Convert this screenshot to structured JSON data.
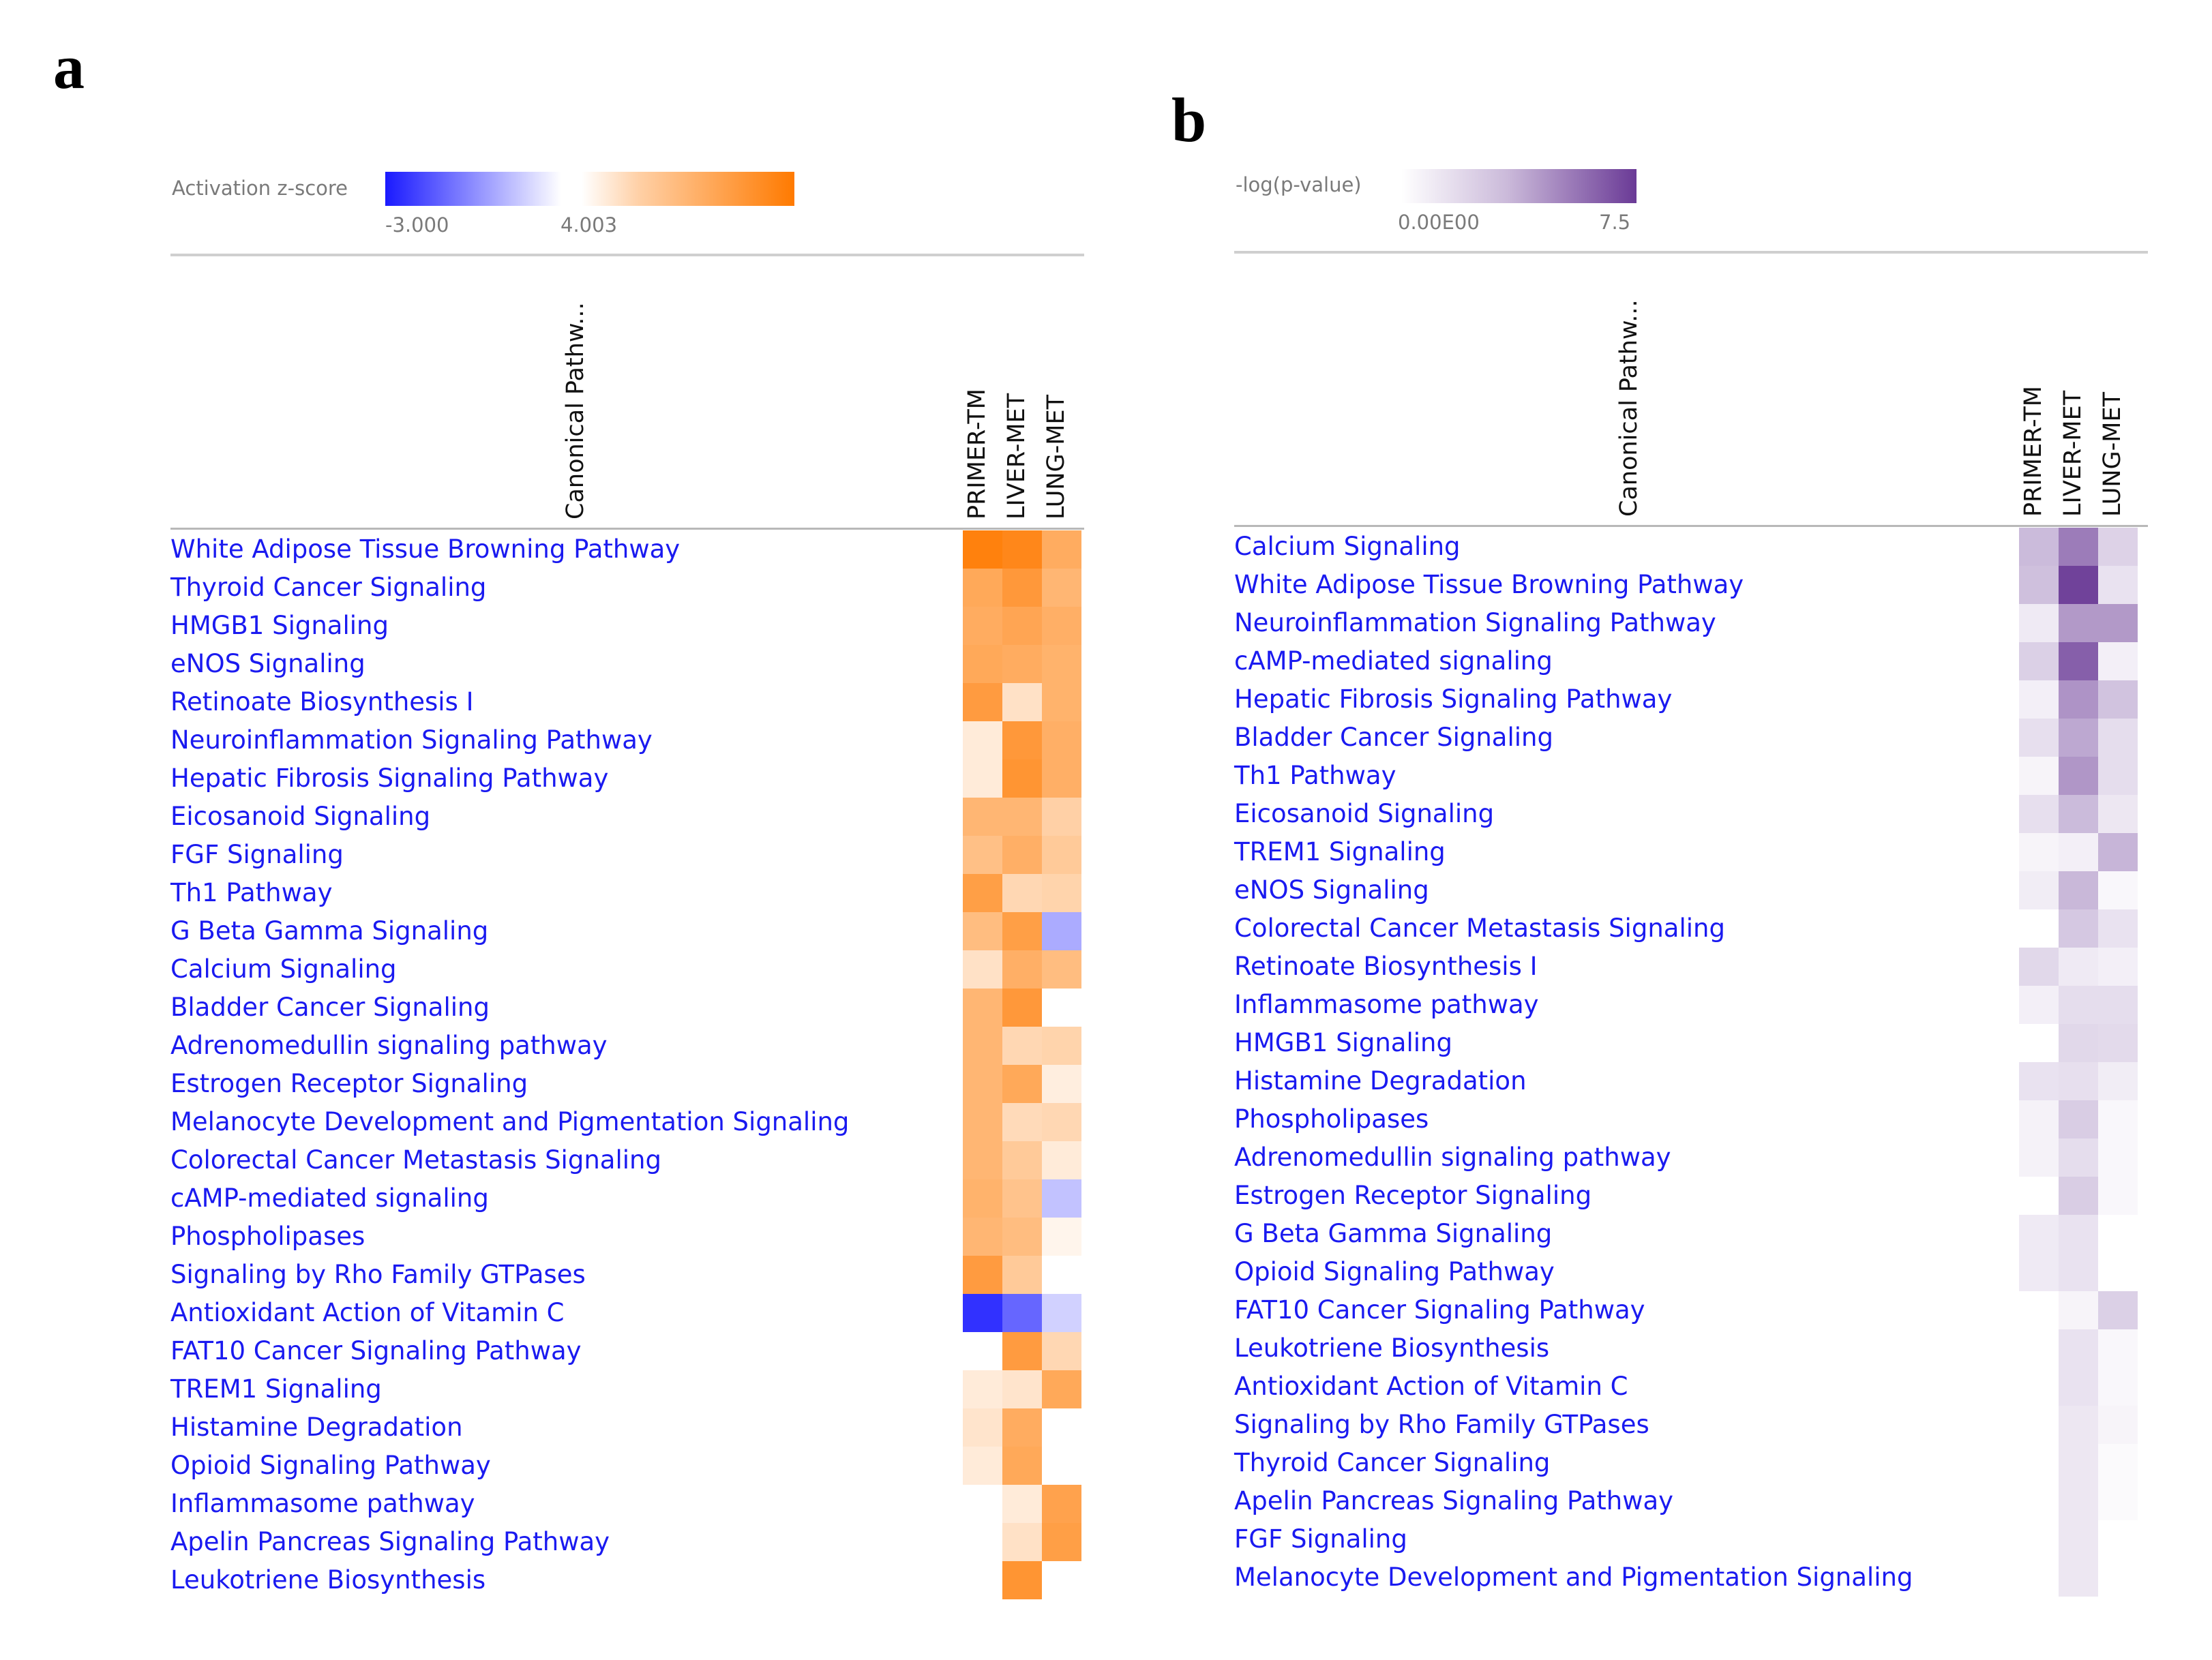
{
  "panel_a": {
    "letter": "a",
    "legend": {
      "title": "Activation z-score",
      "min_label": "-3.000",
      "max_label": "4.003",
      "min": -3.0,
      "max": 4.003,
      "low_color": "#1a1aff",
      "mid_color": "#ffffff",
      "high_color": "#ff7a00"
    },
    "pathway_header": "Canonical Pathw...",
    "columns": [
      "PRIMER-TM",
      "LIVER-MET",
      "LUNG-MET"
    ]
  },
  "panel_b": {
    "letter": "b",
    "legend": {
      "title": "-log(p-value)",
      "min_label": "0.00E00",
      "max_label": "7.5",
      "min": 0.0,
      "max": 7.5,
      "low_color": "#ffffff",
      "high_color": "#6a3a96"
    },
    "pathway_header": "Canonical Pathw...",
    "columns": [
      "PRIMER-TM",
      "LIVER-MET",
      "LUNG-MET"
    ]
  },
  "chart_data": [
    {
      "type": "heatmap",
      "title": "Activation z-score",
      "columns": [
        "PRIMER-TM",
        "LIVER-MET",
        "LUNG-MET"
      ],
      "range": [
        -3.0,
        4.003
      ],
      "rows": [
        {
          "label": "White Adipose Tissue Browning Pathway",
          "values": [
            3.8,
            3.6,
            2.5
          ]
        },
        {
          "label": "Thyroid Cancer Signaling",
          "values": [
            2.6,
            3.1,
            2.2
          ]
        },
        {
          "label": "HMGB1 Signaling",
          "values": [
            2.5,
            2.7,
            2.4
          ]
        },
        {
          "label": "eNOS Signaling",
          "values": [
            2.6,
            2.5,
            2.3
          ]
        },
        {
          "label": "Retinoate Biosynthesis I",
          "values": [
            3.0,
            0.9,
            2.3
          ]
        },
        {
          "label": "Neuroinflammation Signaling Pathway",
          "values": [
            0.6,
            3.1,
            2.4
          ]
        },
        {
          "label": "Hepatic Fibrosis Signaling Pathway",
          "values": [
            0.6,
            3.2,
            2.4
          ]
        },
        {
          "label": "Eicosanoid Signaling",
          "values": [
            2.2,
            2.2,
            1.4
          ]
        },
        {
          "label": "FGF Signaling",
          "values": [
            1.9,
            2.4,
            1.6
          ]
        },
        {
          "label": "Th1 Pathway",
          "values": [
            2.9,
            1.2,
            1.3
          ]
        },
        {
          "label": "G Beta Gamma Signaling",
          "values": [
            2.0,
            2.9,
            -1.1
          ]
        },
        {
          "label": "Calcium Signaling",
          "values": [
            0.9,
            2.4,
            2.0
          ]
        },
        {
          "label": "Bladder Cancer Signaling",
          "values": [
            2.2,
            3.1,
            null
          ]
        },
        {
          "label": "Adrenomedullin signaling pathway",
          "values": [
            2.2,
            1.2,
            1.3
          ]
        },
        {
          "label": "Estrogen Receptor Signaling",
          "values": [
            2.2,
            2.6,
            0.5
          ]
        },
        {
          "label": "Melanocyte Development and Pigmentation Signaling",
          "values": [
            2.2,
            1.1,
            1.2
          ]
        },
        {
          "label": "Colorectal Cancer Metastasis Signaling",
          "values": [
            2.2,
            1.6,
            0.6
          ]
        },
        {
          "label": "cAMP-mediated signaling",
          "values": [
            2.3,
            1.8,
            -0.8
          ]
        },
        {
          "label": "Phospholipases",
          "values": [
            2.2,
            2.0,
            0.3
          ]
        },
        {
          "label": "Signaling by Rho Family GTPases",
          "values": [
            3.0,
            1.6,
            null
          ]
        },
        {
          "label": "Antioxidant Action of Vitamin C",
          "values": [
            -2.7,
            -2.0,
            -0.6
          ]
        },
        {
          "label": "FAT10 Cancer Signaling Pathway",
          "values": [
            null,
            3.0,
            1.2
          ]
        },
        {
          "label": "TREM1 Signaling",
          "values": [
            0.6,
            0.8,
            2.6
          ]
        },
        {
          "label": "Histamine Degradation",
          "values": [
            0.8,
            2.5,
            null
          ]
        },
        {
          "label": "Opioid Signaling Pathway",
          "values": [
            0.6,
            2.6,
            null
          ]
        },
        {
          "label": "Inflammasome pathway",
          "values": [
            null,
            0.6,
            2.8
          ]
        },
        {
          "label": "Apelin Pancreas Signaling Pathway",
          "values": [
            null,
            0.9,
            2.9
          ]
        },
        {
          "label": "Leukotriene Biosynthesis",
          "values": [
            null,
            3.2,
            null
          ]
        }
      ]
    },
    {
      "type": "heatmap",
      "title": "-log(p-value)",
      "columns": [
        "PRIMER-TM",
        "LIVER-MET",
        "LUNG-MET"
      ],
      "range": [
        0.0,
        7.5
      ],
      "rows": [
        {
          "label": "Calcium Signaling",
          "values": [
            2.6,
            5.0,
            1.7
          ]
        },
        {
          "label": "White Adipose Tissue Browning Pathway",
          "values": [
            2.4,
            7.2,
            1.1
          ]
        },
        {
          "label": "Neuroinflammation Signaling Pathway",
          "values": [
            0.8,
            3.9,
            3.9
          ]
        },
        {
          "label": "cAMP-mediated signaling",
          "values": [
            1.8,
            6.1,
            0.6
          ]
        },
        {
          "label": "Hepatic Fibrosis Signaling Pathway",
          "values": [
            0.6,
            4.1,
            2.3
          ]
        },
        {
          "label": "Bladder Cancer Signaling",
          "values": [
            1.2,
            3.3,
            1.3
          ]
        },
        {
          "label": "Th1 Pathway",
          "values": [
            0.4,
            4.0,
            1.3
          ]
        },
        {
          "label": "Eicosanoid Signaling",
          "values": [
            1.2,
            2.6,
            0.9
          ]
        },
        {
          "label": "TREM1 Signaling",
          "values": [
            0.4,
            0.6,
            2.8
          ]
        },
        {
          "label": "eNOS Signaling",
          "values": [
            0.7,
            2.7,
            0.3
          ]
        },
        {
          "label": "Colorectal Cancer Metastasis Signaling",
          "values": [
            null,
            2.1,
            1.1
          ]
        },
        {
          "label": "Retinoate Biosynthesis I",
          "values": [
            1.5,
            0.8,
            0.6
          ]
        },
        {
          "label": "Inflammasome pathway",
          "values": [
            0.6,
            1.3,
            1.3
          ]
        },
        {
          "label": "HMGB1 Signaling",
          "values": [
            null,
            1.5,
            1.4
          ]
        },
        {
          "label": "Histamine Degradation",
          "values": [
            1.1,
            1.2,
            0.7
          ]
        },
        {
          "label": "Phospholipases",
          "values": [
            0.5,
            1.9,
            0.3
          ]
        },
        {
          "label": "Adrenomedullin signaling pathway",
          "values": [
            0.5,
            1.3,
            0.3
          ]
        },
        {
          "label": "Estrogen Receptor Signaling",
          "values": [
            null,
            1.9,
            0.3
          ]
        },
        {
          "label": "G Beta Gamma Signaling",
          "values": [
            0.8,
            1.1,
            null
          ]
        },
        {
          "label": "Opioid Signaling Pathway",
          "values": [
            0.8,
            1.1,
            null
          ]
        },
        {
          "label": "FAT10 Cancer Signaling Pathway",
          "values": [
            null,
            0.4,
            1.8
          ]
        },
        {
          "label": "Leukotriene Biosynthesis",
          "values": [
            null,
            1.1,
            0.3
          ]
        },
        {
          "label": "Antioxidant Action of Vitamin C",
          "values": [
            null,
            1.1,
            0.3
          ]
        },
        {
          "label": "Signaling by Rho Family GTPases",
          "values": [
            null,
            0.9,
            0.4
          ]
        },
        {
          "label": "Thyroid Cancer Signaling",
          "values": [
            null,
            0.9,
            0.2
          ]
        },
        {
          "label": "Apelin Pancreas Signaling Pathway",
          "values": [
            null,
            0.9,
            0.2
          ]
        },
        {
          "label": "FGF Signaling",
          "values": [
            null,
            0.9,
            null
          ]
        },
        {
          "label": "Melanocyte Development and Pigmentation Signaling",
          "values": [
            null,
            0.9,
            null
          ]
        }
      ]
    }
  ]
}
